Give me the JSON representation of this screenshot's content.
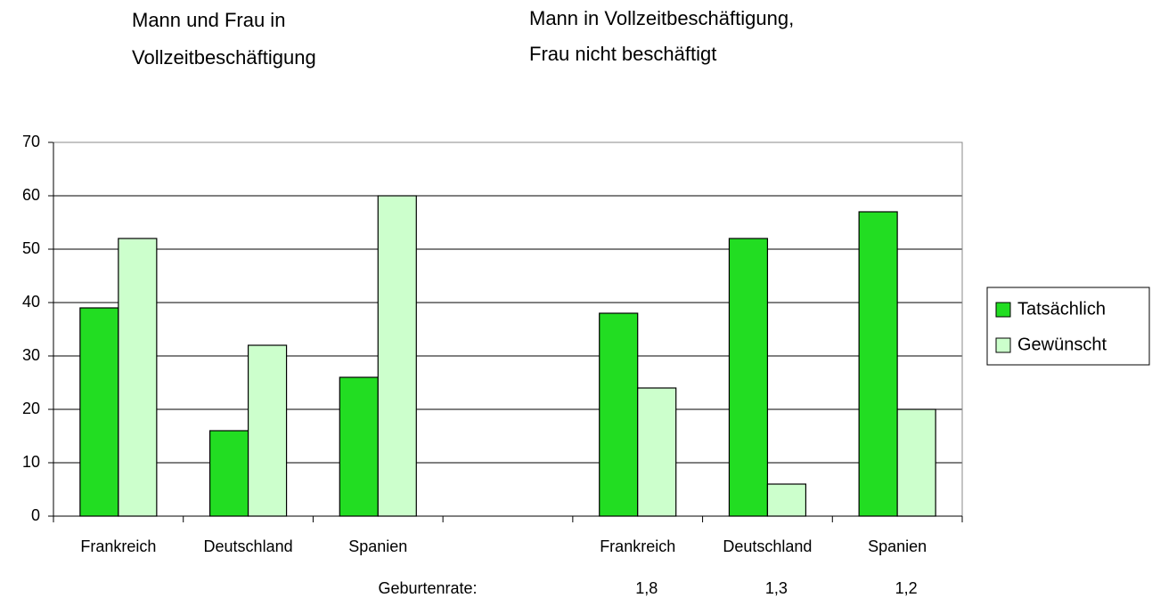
{
  "chart_data": {
    "type": "bar",
    "group_titles": [
      [
        "Mann und Frau in",
        "Vollzeitbeschäftigung"
      ],
      [
        "Mann in Vollzeitbeschäftigung,",
        "Frau nicht beschäftigt"
      ]
    ],
    "categories": [
      "Frankreich",
      "Deutschland",
      "Spanien",
      null,
      "Frankreich",
      "Deutschland",
      "Spanien"
    ],
    "series": [
      {
        "name": "Tatsächlich",
        "color": "#22dd22",
        "values": [
          39,
          16,
          26,
          null,
          38,
          52,
          57
        ]
      },
      {
        "name": "Gewünscht",
        "color": "#ccffcc",
        "values": [
          52,
          32,
          60,
          null,
          24,
          6,
          20
        ]
      }
    ],
    "ylim": [
      0,
      70
    ],
    "yticks": [
      0,
      10,
      20,
      30,
      40,
      50,
      60,
      70
    ],
    "grid": true,
    "legend": "right",
    "birth_rate": {
      "label": "Geburtenrate:",
      "values": [
        "1,8",
        "1,3",
        "1,2"
      ]
    }
  }
}
